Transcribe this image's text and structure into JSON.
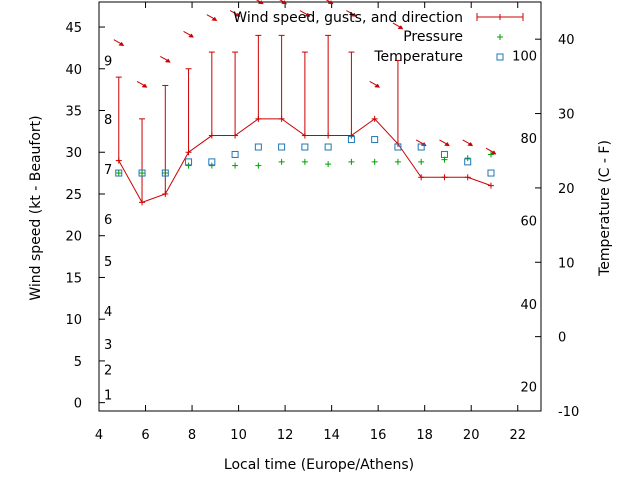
{
  "chart_data": {
    "type": "line",
    "xlabel": "Local time (Europe/Athens)",
    "ylabel_left": "Wind speed (kt - Beaufort)",
    "ylabel_right": "Temperature (C - F)",
    "xlim": [
      4,
      23
    ],
    "ylim_left": [
      -1,
      48
    ],
    "ylim_right": [
      -10,
      45
    ],
    "x_ticks": [
      4,
      6,
      8,
      10,
      12,
      14,
      16,
      18,
      20,
      22
    ],
    "y_ticks_left": [
      0,
      5,
      10,
      15,
      20,
      25,
      30,
      35,
      40,
      45
    ],
    "y_ticks_right": [
      -10,
      0,
      10,
      20,
      30,
      40
    ],
    "beaufort_labels": [
      {
        "label": "1",
        "kt": 1
      },
      {
        "label": "2",
        "kt": 4
      },
      {
        "label": "3",
        "kt": 7
      },
      {
        "label": "4",
        "kt": 11
      },
      {
        "label": "5",
        "kt": 17
      },
      {
        "label": "6",
        "kt": 22
      },
      {
        "label": "7",
        "kt": 28
      },
      {
        "label": "8",
        "kt": 34
      },
      {
        "label": "9",
        "kt": 41
      }
    ],
    "fahrenheit_labels": [
      {
        "label": "20",
        "temp_c": -6.7
      },
      {
        "label": "40",
        "temp_c": 4.4
      },
      {
        "label": "60",
        "temp_c": 15.6
      },
      {
        "label": "80",
        "temp_c": 26.7
      },
      {
        "label": "100",
        "temp_c": 37.8
      }
    ],
    "legend": {
      "wind": "Wind speed, gusts, and direction",
      "pressure": "Pressure",
      "temperature": "Temperature"
    },
    "colors": {
      "wind": "#cc0000",
      "pressure": "#00a000",
      "temperature": "#1f77b4",
      "axes": "#000000"
    },
    "series": {
      "wind": {
        "x": [
          4.85,
          5.85,
          6.85,
          7.85,
          8.85,
          9.85,
          10.85,
          11.85,
          12.85,
          13.85,
          14.85,
          15.85,
          16.85,
          17.85,
          18.85,
          19.85,
          20.85
        ],
        "speed": [
          29,
          24,
          25,
          30,
          32,
          32,
          34,
          34,
          32,
          32,
          32,
          34,
          31,
          27,
          27,
          27,
          26
        ],
        "gust": [
          39,
          34,
          38,
          40,
          42,
          42,
          44,
          44,
          42,
          44,
          42,
          null,
          41,
          null,
          null,
          null,
          null
        ]
      },
      "pressure": {
        "x": [
          4.85,
          5.85,
          6.85,
          7.85,
          8.85,
          9.85,
          10.85,
          11.85,
          12.85,
          13.85,
          14.85,
          15.85,
          16.85,
          17.85,
          18.85,
          19.85,
          20.85
        ],
        "values": [
          22,
          22,
          22,
          23,
          23,
          23,
          23,
          23.5,
          23.5,
          23.2,
          23.5,
          23.5,
          23.5,
          23.5,
          23.8,
          24,
          24.5
        ]
      },
      "temperature": {
        "x": [
          4.85,
          5.85,
          6.85,
          7.85,
          8.85,
          9.85,
          10.85,
          11.85,
          12.85,
          13.85,
          14.85,
          15.85,
          16.85,
          17.85,
          18.85,
          19.85,
          20.85
        ],
        "values": [
          22,
          22,
          22,
          23.5,
          23.5,
          24.5,
          25.5,
          25.5,
          25.5,
          25.5,
          26.5,
          26.5,
          25.5,
          25.5,
          24.5,
          23.5,
          22
        ]
      },
      "direction_arrows": {
        "x": [
          4.85,
          5.85,
          6.85,
          7.85,
          8.85,
          9.85,
          10.85,
          11.85,
          12.85,
          13.85,
          14.85,
          15.85,
          16.85,
          17.85,
          18.85,
          19.85,
          20.85
        ],
        "y_kt": [
          43,
          38,
          41,
          44,
          46,
          46.5,
          48,
          48,
          46.5,
          48,
          46.5,
          38,
          45,
          31,
          31,
          31,
          30
        ]
      }
    }
  }
}
